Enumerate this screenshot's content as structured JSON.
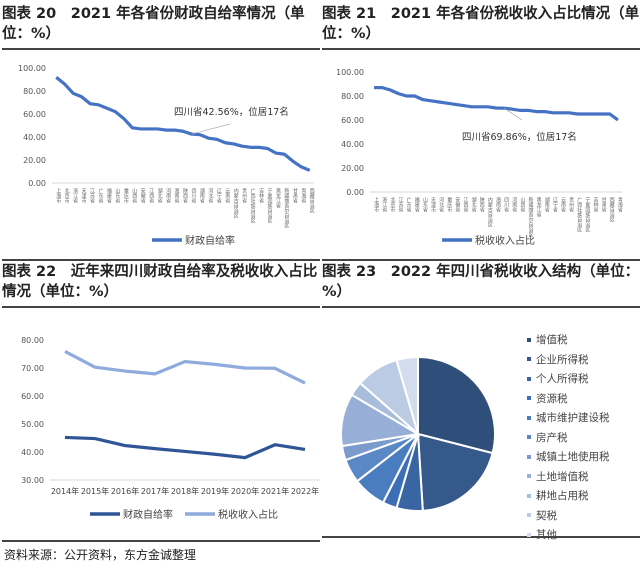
{
  "charts": [
    {
      "title": "图表 20　2021 年各省份财政自给率情况（单位：%）",
      "type": "line",
      "ylim": [
        0,
        100
      ],
      "yticks": [
        "0.00",
        "20.00",
        "40.00",
        "60.00",
        "80.00",
        "100.00"
      ],
      "categories": [
        "上海市",
        "北京市",
        "浙江省",
        "天津市",
        "江苏省",
        "广东省",
        "福建省",
        "山东省",
        "重庆市",
        "山西省",
        "安徽省",
        "江西省",
        "湖北省",
        "河南省",
        "海南省",
        "陕西省",
        "四川省",
        "湖南省",
        "河北省",
        "辽宁省",
        "云南省",
        "内蒙古自治区",
        "贵州省",
        "广西壮族自治区",
        "吉林省",
        "宁夏回族自治区",
        "黑龙江省",
        "新疆维吾尔自治区",
        "甘肃省",
        "青海省",
        "西藏自治区"
      ],
      "series": [
        {
          "name": "财政自给率",
          "color": "#4472c4",
          "values": [
            92,
            86,
            78,
            75,
            69,
            68,
            65,
            62,
            56,
            48,
            47,
            47,
            47,
            46,
            46,
            45,
            42.56,
            42,
            39,
            38,
            35,
            34,
            32,
            31,
            31,
            30,
            26,
            25,
            19,
            14,
            11
          ]
        }
      ],
      "annotation": "四川省42.56%，位居17名"
    },
    {
      "title": "图表 21　2021 年各省份税收收入占比情况（单位：%）",
      "type": "line",
      "ylim": [
        0,
        100
      ],
      "yticks": [
        "0.00",
        "20.00",
        "40.00",
        "60.00",
        "80.00",
        "100.00"
      ],
      "categories": [
        "上海市",
        "浙江省",
        "北京市",
        "江苏省",
        "广东省",
        "福建省",
        "山东省",
        "天津市",
        "河北省",
        "重庆市",
        "安徽省",
        "江西省",
        "湖北省",
        "陕西省",
        "内蒙古自治区",
        "海南省",
        "四川省",
        "河南省",
        "山西省",
        "新疆维吾尔自治区",
        "黑龙江省",
        "湖南省",
        "辽宁省",
        "云南省",
        "贵州省",
        "广西壮族自治区",
        "宁夏回族自治区",
        "吉林省",
        "甘肃省",
        "西藏自治区",
        "青海省"
      ],
      "series": [
        {
          "name": "税收收入占比",
          "color": "#4472c4",
          "values": [
            87,
            87,
            85,
            82,
            80,
            80,
            77,
            76,
            75,
            74,
            73,
            72,
            71,
            71,
            71,
            70,
            69.86,
            69,
            68,
            68,
            67,
            67,
            66,
            66,
            66,
            65,
            65,
            65,
            65,
            65,
            60
          ]
        }
      ],
      "annotation": "四川省69.86%，位居17名"
    },
    {
      "title": "图表 22　近年来四川财政自给率及税收收入占比情况（单位：%）",
      "type": "line",
      "ylim": [
        30,
        80
      ],
      "yticks": [
        "30.00",
        "40.00",
        "50.00",
        "60.00",
        "70.00",
        "80.00"
      ],
      "categories": [
        "2014年",
        "2015年",
        "2016年",
        "2017年",
        "2018年",
        "2019年",
        "2020年",
        "2021年",
        "2022年"
      ],
      "series": [
        {
          "name": "财政自给率",
          "color": "#2f5597",
          "values": [
            45.2,
            44.8,
            42.3,
            41.2,
            40.2,
            39.2,
            38.0,
            42.6,
            40.9
          ]
        },
        {
          "name": "税收收入占比",
          "color": "#8faadc",
          "values": [
            75.9,
            70.3,
            68.9,
            67.9,
            72.3,
            71.3,
            70.0,
            69.9,
            64.6
          ]
        }
      ]
    },
    {
      "title": "图表 23　2022 年四川省税收收入结构（单位：%）",
      "type": "pie",
      "categories": [
        "增值税",
        "企业所得税",
        "个人所得税",
        "资源税",
        "城市维护建设税",
        "房产税",
        "城镇土地使用税",
        "土地增值税",
        "耕地占用税",
        "契税",
        "其他"
      ],
      "values": [
        29,
        20,
        5.5,
        3,
        7,
        5,
        3,
        11,
        3,
        9,
        4.5
      ],
      "colors": [
        "#2f4e7a",
        "#36598c",
        "#3a65a3",
        "#3d6fb8",
        "#4a7cc0",
        "#5a87c6",
        "#7b9bcc",
        "#97afd6",
        "#a8bcdc",
        "#bccbe4",
        "#d3dcec"
      ]
    }
  ],
  "source": "资料来源：公开资料，东方金诚整理"
}
